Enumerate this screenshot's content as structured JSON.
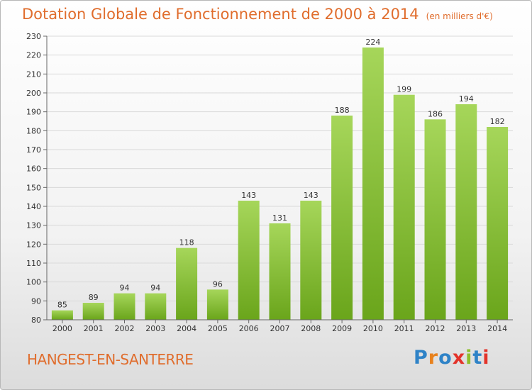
{
  "header": {
    "title": "Dotation Globale de Fonctionnement de 2000 à 2014",
    "subtitle": "(en milliers d'€)"
  },
  "footer": {
    "place": "HANGEST-EN-SANTERRE",
    "logo": "Proxiti",
    "logo_colors": [
      "#2f83c7",
      "#e8821e",
      "#2f83c7",
      "#e3332a",
      "#8fbf2b",
      "#2f83c7",
      "#e3332a"
    ]
  },
  "chart_data": {
    "type": "bar",
    "categories": [
      "2000",
      "2001",
      "2002",
      "2003",
      "2004",
      "2005",
      "2006",
      "2007",
      "2008",
      "2009",
      "2010",
      "2011",
      "2012",
      "2013",
      "2014"
    ],
    "values": [
      85,
      89,
      94,
      94,
      118,
      96,
      143,
      131,
      143,
      188,
      224,
      199,
      186,
      194,
      182
    ],
    "ylim": [
      80,
      230
    ],
    "yticks": [
      80,
      90,
      100,
      110,
      120,
      130,
      140,
      150,
      160,
      170,
      180,
      190,
      200,
      210,
      220,
      230
    ],
    "grid": true,
    "colors": {
      "bar_top": "#a6d65a",
      "bar_bottom": "#6aa51b",
      "grid": "#d9d9d9",
      "text": "#333333"
    }
  }
}
